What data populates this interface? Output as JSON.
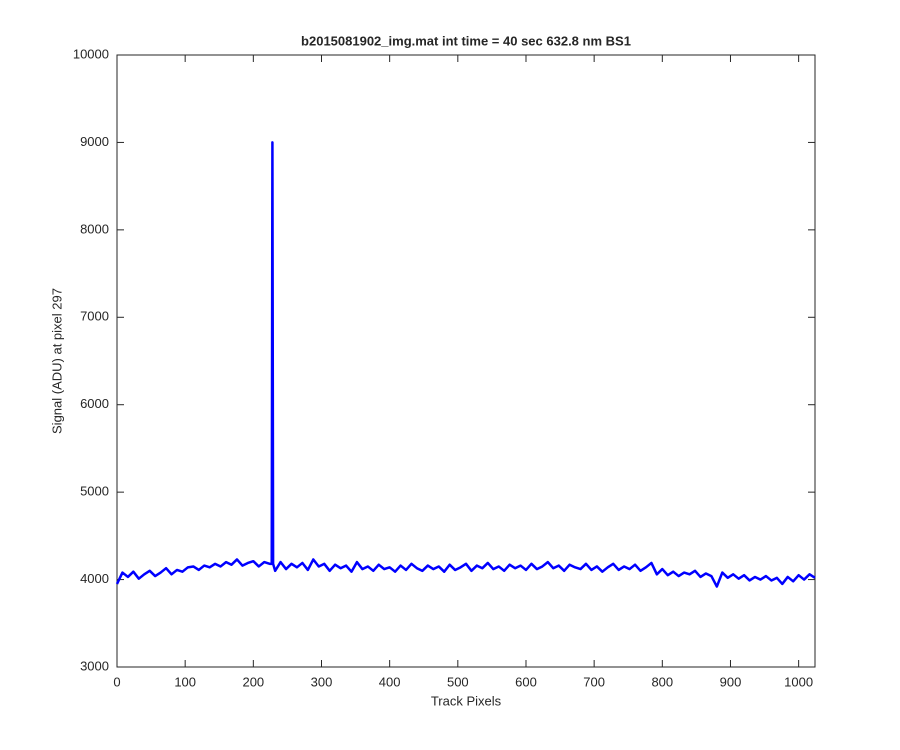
{
  "chart_data": {
    "type": "line",
    "title": "b2015081902_img.mat int time = 40 sec  632.8 nm BS1",
    "x_label": "Track Pixels",
    "y_label": "Signal (ADU) at pixel 297",
    "xlim": [
      0,
      1024
    ],
    "ylim": [
      3000,
      10000
    ],
    "xticks": [
      0,
      100,
      200,
      300,
      400,
      500,
      600,
      700,
      800,
      900,
      1000
    ],
    "yticks": [
      3000,
      4000,
      5000,
      6000,
      7000,
      8000,
      9000,
      10000
    ],
    "grid": false,
    "series": [
      {
        "color": "#0000ff",
        "x": [
          0,
          8,
          16,
          24,
          32,
          40,
          48,
          56,
          64,
          72,
          80,
          88,
          96,
          104,
          112,
          120,
          128,
          136,
          144,
          152,
          160,
          168,
          176,
          184,
          192,
          200,
          208,
          216,
          224,
          227,
          228,
          229,
          232,
          240,
          248,
          256,
          264,
          272,
          280,
          288,
          296,
          304,
          312,
          320,
          328,
          336,
          344,
          352,
          360,
          368,
          376,
          384,
          392,
          400,
          408,
          416,
          424,
          432,
          440,
          448,
          456,
          464,
          472,
          480,
          488,
          496,
          504,
          512,
          520,
          528,
          536,
          544,
          552,
          560,
          568,
          576,
          584,
          592,
          600,
          608,
          616,
          624,
          632,
          640,
          648,
          656,
          664,
          672,
          680,
          688,
          696,
          704,
          712,
          720,
          728,
          736,
          744,
          752,
          760,
          768,
          776,
          784,
          792,
          800,
          808,
          816,
          824,
          832,
          840,
          848,
          856,
          864,
          872,
          880,
          888,
          896,
          904,
          912,
          920,
          928,
          936,
          944,
          952,
          960,
          968,
          976,
          984,
          992,
          1000,
          1008,
          1016,
          1024
        ],
        "values": [
          3950,
          4080,
          4030,
          4090,
          4010,
          4060,
          4100,
          4040,
          4080,
          4130,
          4060,
          4110,
          4090,
          4140,
          4150,
          4110,
          4160,
          4140,
          4180,
          4150,
          4200,
          4170,
          4230,
          4160,
          4190,
          4210,
          4150,
          4200,
          4180,
          4180,
          9000,
          4180,
          4100,
          4200,
          4120,
          4180,
          4140,
          4190,
          4110,
          4230,
          4150,
          4180,
          4100,
          4170,
          4130,
          4160,
          4090,
          4200,
          4120,
          4150,
          4100,
          4170,
          4120,
          4140,
          4090,
          4160,
          4110,
          4180,
          4130,
          4100,
          4160,
          4120,
          4150,
          4090,
          4170,
          4110,
          4140,
          4180,
          4100,
          4160,
          4130,
          4190,
          4120,
          4150,
          4100,
          4170,
          4130,
          4160,
          4110,
          4180,
          4120,
          4150,
          4200,
          4130,
          4160,
          4100,
          4170,
          4140,
          4120,
          4180,
          4110,
          4150,
          4090,
          4140,
          4180,
          4110,
          4150,
          4120,
          4170,
          4100,
          4140,
          4190,
          4060,
          4120,
          4050,
          4090,
          4040,
          4080,
          4060,
          4100,
          4030,
          4070,
          4040,
          3920,
          4080,
          4020,
          4060,
          4010,
          4050,
          3990,
          4030,
          4000,
          4040,
          3990,
          4020,
          3950,
          4030,
          3980,
          4050,
          4000,
          4060,
          4020
        ]
      }
    ]
  }
}
